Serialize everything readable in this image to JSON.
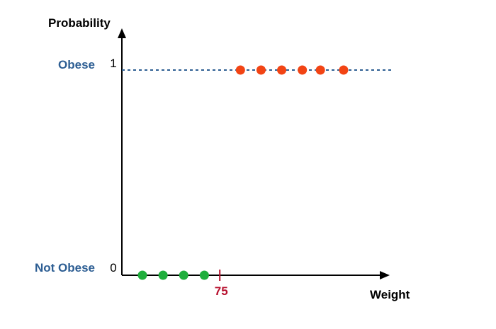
{
  "chart_data": {
    "type": "scatter",
    "title": "",
    "xlabel": "Weight",
    "ylabel": "Probability",
    "ylim": [
      0,
      1
    ],
    "grid": false,
    "y_ticks": [
      {
        "value": 0,
        "label": "0",
        "class_label": "Not Obese"
      },
      {
        "value": 1,
        "label": "1",
        "class_label": "Obese"
      }
    ],
    "threshold": {
      "value": 75,
      "label": "75"
    },
    "series": [
      {
        "class": "Not Obese",
        "color": "#1fae3c",
        "points": [
          {
            "x": 45,
            "y": 0
          },
          {
            "x": 53,
            "y": 0
          },
          {
            "x": 61,
            "y": 0
          },
          {
            "x": 69,
            "y": 0
          }
        ]
      },
      {
        "class": "Obese",
        "color": "#f24414",
        "points": [
          {
            "x": 83,
            "y": 1
          },
          {
            "x": 91,
            "y": 1
          },
          {
            "x": 99,
            "y": 1
          },
          {
            "x": 107,
            "y": 1
          },
          {
            "x": 114,
            "y": 1
          },
          {
            "x": 123,
            "y": 1
          }
        ]
      }
    ],
    "colors": {
      "class_label": "#2d5e93",
      "threshold": "#b7102e",
      "dashed_line": "#2d5e93",
      "axis": "#000000"
    }
  }
}
